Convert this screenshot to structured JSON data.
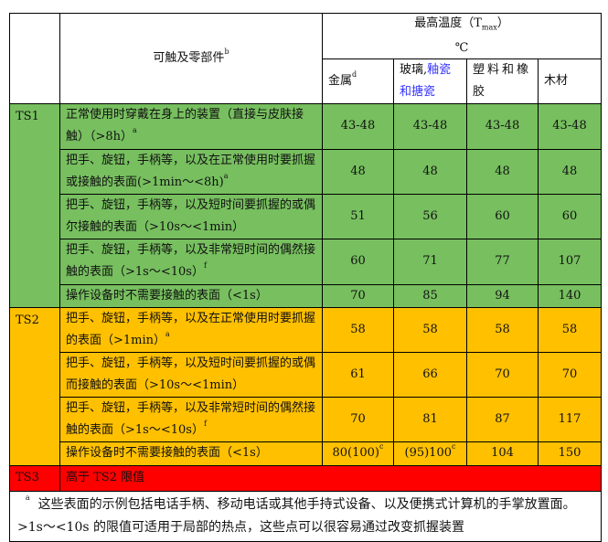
{
  "header": {
    "parts_label": "可触及零部件",
    "parts_sup": "b",
    "tmax_label": "最高温度（T",
    "tmax_sub": "max",
    "tmax_close": "）",
    "unit": "℃",
    "materials": [
      {
        "label": "金属",
        "sup": "d"
      },
      {
        "label": "玻璃,",
        "label_blue": "釉瓷和搪瓷"
      },
      {
        "label": "塑料和橡胶"
      },
      {
        "label": "木材"
      }
    ]
  },
  "colors": {
    "ts1": "#77bf5f",
    "ts2": "#ffc000",
    "ts3": "#ff0000"
  },
  "levels": [
    {
      "name": "TS1",
      "rows": [
        {
          "desc": "正常使用时穿戴在身上的装置（直接与皮肤接触）（>8h）",
          "sup": "a",
          "values": [
            "43-48",
            "43-48",
            "43-48",
            "43-48"
          ]
        },
        {
          "desc": "把手、旋钮，手柄等，以及在正常使用时要抓握或接触的表面(>1min～<8h)",
          "sup": "a",
          "values": [
            "48",
            "48",
            "48",
            "48"
          ]
        },
        {
          "desc": "把手、旋钮，手柄等，以及短时间要抓握的或偶尔接触的表面（>10s～<1min）",
          "sup": "",
          "values": [
            "51",
            "56",
            "60",
            "60"
          ]
        },
        {
          "desc": "把手、旋钮，手柄等，以及非常短时间的偶然接触的表面（>1s～<10s）",
          "sup": "f",
          "values": [
            "60",
            "71",
            "77",
            "107"
          ]
        },
        {
          "desc": "操作设备时不需要接触的表面（<1s）",
          "sup": "",
          "values": [
            "70",
            "85",
            "94",
            "140"
          ]
        }
      ]
    },
    {
      "name": "TS2",
      "rows": [
        {
          "desc": "把手、旋钮，手柄等，以及在正常使用时要抓握的表面（>1min）",
          "sup": "a",
          "values": [
            "58",
            "58",
            "58",
            "58"
          ]
        },
        {
          "desc": "把手、旋钮，手柄等，以及短时间要抓握的或偶而接触的表面（>10s～<1min）",
          "sup": "",
          "values": [
            "61",
            "66",
            "70",
            "70"
          ]
        },
        {
          "desc": "把手、旋钮，手柄等，以及非常短时间的偶然接触的表面（>1s～<10s）",
          "sup": "f",
          "values": [
            "70",
            "81",
            "87",
            "117"
          ]
        },
        {
          "desc": "操作设备时不需要接触的表面（<1s）",
          "sup": "",
          "values": [
            "80(100)",
            "(95)100",
            "104",
            "150"
          ],
          "value_sups": [
            "c",
            "c",
            "",
            ""
          ]
        }
      ]
    },
    {
      "name": "TS3",
      "desc": "高于 TS2 限值"
    }
  ],
  "footnote": {
    "marker": "a",
    "text": "这些表面的示例包括电话手柄、移动电话或其他手持式设备、以及便携式计算机的手掌放置面。>1s～<10s 的限值可适用于局部的热点，这些点可以很容易通过改变抓握装置"
  }
}
